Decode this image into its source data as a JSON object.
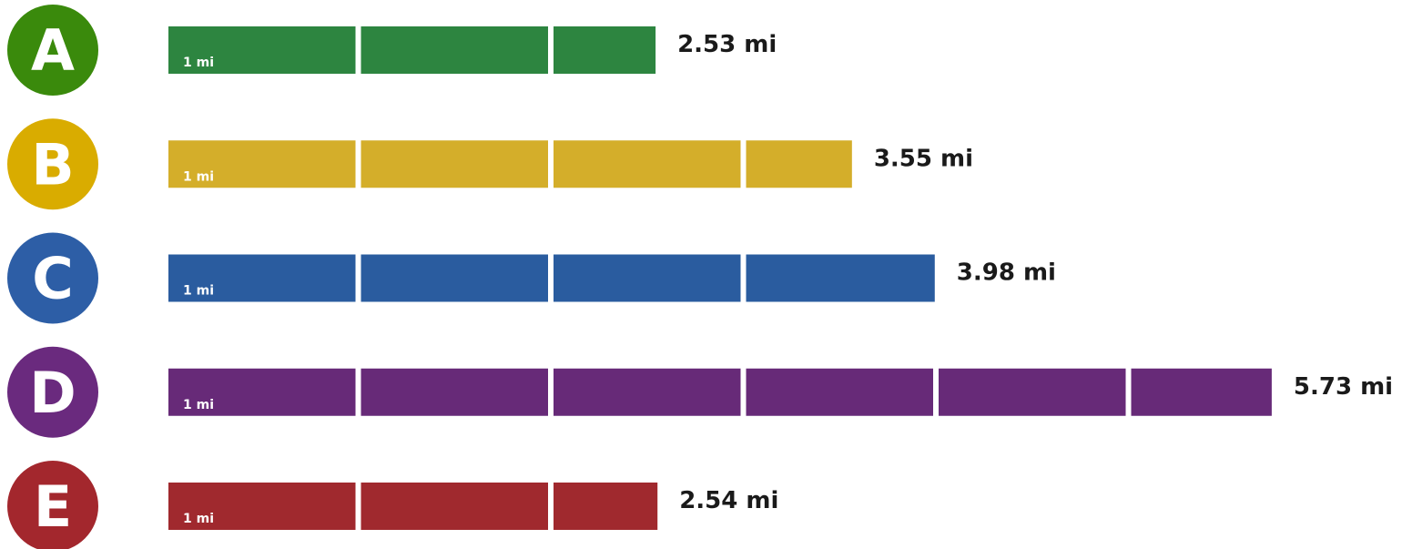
{
  "chart_data": {
    "type": "bar",
    "orientation": "horizontal",
    "categories": [
      "A",
      "B",
      "C",
      "D",
      "E"
    ],
    "values": [
      2.53,
      3.55,
      3.98,
      5.73,
      2.54
    ],
    "value_labels": [
      "2.53 mi",
      "3.55 mi",
      "3.98 mi",
      "5.73 mi",
      "2.54 mi"
    ],
    "unit": "mi",
    "segment_unit_value": 1,
    "segment_label": "1 mi",
    "colors": [
      "#2d8540",
      "#d4ae2a",
      "#2a5c9f",
      "#672a78",
      "#a0292e"
    ],
    "badge_colors": [
      "#3a8a0c",
      "#d9ac00",
      "#2d5ea6",
      "#6a2a7e",
      "#a3272d"
    ]
  }
}
